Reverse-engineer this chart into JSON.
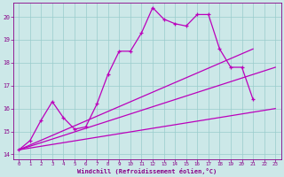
{
  "xlabel": "Windchill (Refroidissement éolien,°C)",
  "bg_color": "#cce8e8",
  "line_color": "#bb00bb",
  "grid_color": "#99cccc",
  "axis_color": "#880088",
  "xlim": [
    -0.5,
    23.5
  ],
  "ylim": [
    13.8,
    20.6
  ],
  "yticks": [
    14,
    15,
    16,
    17,
    18,
    19,
    20
  ],
  "xticks": [
    0,
    1,
    2,
    3,
    4,
    5,
    6,
    7,
    8,
    9,
    10,
    11,
    12,
    13,
    14,
    15,
    16,
    17,
    18,
    19,
    20,
    21,
    22,
    23
  ],
  "curve1_x": [
    0,
    1,
    2,
    3,
    4,
    5,
    6,
    7,
    8,
    9,
    10,
    11,
    12,
    13,
    14,
    15,
    16,
    17,
    18,
    19,
    20,
    21
  ],
  "curve1_y": [
    14.2,
    14.6,
    15.5,
    16.3,
    15.6,
    15.1,
    15.2,
    16.2,
    17.5,
    18.5,
    18.5,
    19.3,
    20.4,
    19.9,
    19.7,
    19.6,
    20.1,
    20.1,
    18.6,
    17.8,
    17.8,
    16.4
  ],
  "line1_x": [
    0,
    21
  ],
  "line1_y": [
    14.2,
    18.6
  ],
  "line2_x": [
    0,
    23
  ],
  "line2_y": [
    14.2,
    17.8
  ],
  "line3_x": [
    0,
    23
  ],
  "line3_y": [
    14.2,
    16.0
  ]
}
